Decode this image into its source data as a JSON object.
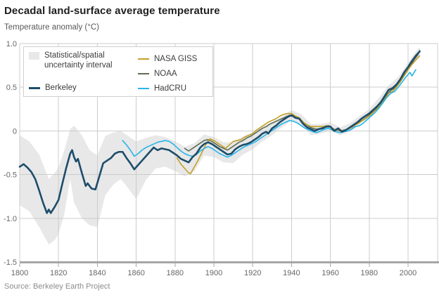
{
  "header": {
    "title": "Decadal land-surface average temperature",
    "subtitle": "Temperature anomaly (°C)"
  },
  "source": {
    "text": "Source: Berkeley Earth Project"
  },
  "legend": {
    "uncertainty": {
      "label": "Statistical/spatial uncertainty interval",
      "swatch_color": "#e8e8e8"
    },
    "series": [
      {
        "id": "berkeley",
        "label": "Berkeley",
        "color": "#1d4d6b"
      },
      {
        "id": "nasa",
        "label": "NASA GISS",
        "color": "#c2a029"
      },
      {
        "id": "noaa",
        "label": "NOAA",
        "color": "#5e6d54"
      },
      {
        "id": "hadcru",
        "label": "HadCRU",
        "color": "#25b5e9"
      }
    ]
  },
  "chart_data": {
    "type": "line",
    "title": "Decadal land-surface average temperature",
    "xlabel": "",
    "ylabel": "Temperature anomaly (°C)",
    "xlim": [
      1800,
      2015
    ],
    "ylim": [
      -1.5,
      1.0
    ],
    "xticks": [
      1800,
      1820,
      1840,
      1860,
      1880,
      1900,
      1920,
      1940,
      1960,
      1980,
      2000
    ],
    "yticks": [
      1.0,
      0.5,
      0,
      -0.5,
      -1.0,
      -1.5
    ],
    "ytick_labels": [
      "1.0",
      "0.5",
      "0",
      "-0.5",
      "-1.0",
      "-1.5"
    ],
    "grid": true,
    "legend_position": "top-left",
    "colors": {
      "grid": "#cccccc",
      "axis": "#a6a6a6",
      "tick_label": "#666666",
      "band": "#e8e8e8"
    },
    "band": {
      "name": "Statistical/spatial uncertainty interval",
      "x": [
        1800,
        1805,
        1810,
        1815,
        1818,
        1820,
        1823,
        1826,
        1828,
        1832,
        1836,
        1840,
        1844,
        1848,
        1852,
        1856,
        1860,
        1865,
        1870,
        1875,
        1880,
        1885,
        1890,
        1895,
        1900,
        1905,
        1910,
        1915,
        1920,
        1925,
        1930,
        1935,
        1940,
        1945,
        1950,
        1955,
        1960,
        1965,
        1970,
        1975,
        1980,
        1985,
        1990,
        1995,
        2000,
        2003,
        2006
      ],
      "upper": [
        -0.05,
        -0.12,
        -0.27,
        -0.55,
        -0.48,
        -0.42,
        -0.22,
        0.02,
        0.06,
        -0.05,
        -0.22,
        -0.28,
        -0.06,
        -0.02,
        0.0,
        -0.06,
        -0.12,
        -0.08,
        -0.05,
        -0.07,
        -0.12,
        -0.18,
        -0.14,
        -0.04,
        -0.07,
        -0.13,
        -0.13,
        -0.06,
        -0.02,
        0.05,
        0.1,
        0.16,
        0.24,
        0.19,
        0.08,
        0.08,
        0.1,
        0.04,
        0.09,
        0.17,
        0.25,
        0.38,
        0.52,
        0.62,
        0.78,
        0.88,
        0.96
      ],
      "lower": [
        -0.85,
        -0.92,
        -1.1,
        -1.3,
        -1.25,
        -1.18,
        -0.95,
        -0.55,
        -0.82,
        -1.0,
        -1.08,
        -1.1,
        -0.74,
        -0.62,
        -0.55,
        -0.66,
        -0.78,
        -0.56,
        -0.43,
        -0.41,
        -0.46,
        -0.52,
        -0.46,
        -0.28,
        -0.3,
        -0.36,
        -0.37,
        -0.27,
        -0.21,
        -0.12,
        -0.05,
        0.04,
        0.12,
        0.07,
        -0.05,
        -0.03,
        0.0,
        -0.05,
        -0.01,
        0.08,
        0.15,
        0.27,
        0.42,
        0.52,
        0.68,
        0.79,
        0.86
      ]
    },
    "series": [
      {
        "name": "NOAA",
        "color": "#5e6d54",
        "width": 1.6,
        "x": [
          1885,
          1887,
          1889,
          1891,
          1893,
          1895,
          1897,
          1899,
          1901,
          1903,
          1905,
          1907,
          1909,
          1911,
          1913,
          1915,
          1917,
          1919,
          1921,
          1923,
          1925,
          1927,
          1929,
          1931,
          1933,
          1935,
          1937,
          1939,
          1941,
          1943,
          1945,
          1947,
          1949,
          1951,
          1953,
          1955,
          1957,
          1959,
          1961,
          1963,
          1965,
          1967,
          1969,
          1971,
          1973,
          1975,
          1977,
          1979,
          1981,
          1983,
          1985,
          1987,
          1989,
          1991,
          1993,
          1995,
          1997,
          1999,
          2001,
          2003,
          2005,
          2006
        ],
        "y": [
          -0.2,
          -0.23,
          -0.2,
          -0.17,
          -0.14,
          -0.11,
          -0.1,
          -0.12,
          -0.15,
          -0.18,
          -0.2,
          -0.22,
          -0.19,
          -0.16,
          -0.13,
          -0.11,
          -0.08,
          -0.06,
          -0.03,
          0.0,
          0.03,
          0.05,
          0.08,
          0.1,
          0.12,
          0.14,
          0.16,
          0.18,
          0.17,
          0.15,
          0.12,
          0.08,
          0.05,
          0.03,
          0.02,
          0.03,
          0.05,
          0.06,
          0.03,
          0.01,
          0.0,
          0.01,
          0.02,
          0.04,
          0.07,
          0.1,
          0.13,
          0.16,
          0.2,
          0.24,
          0.28,
          0.34,
          0.41,
          0.46,
          0.49,
          0.54,
          0.61,
          0.67,
          0.74,
          0.81,
          0.87,
          0.92
        ]
      },
      {
        "name": "NASA GISS",
        "color": "#c2a029",
        "width": 1.6,
        "x": [
          1881,
          1883,
          1885,
          1887,
          1888,
          1890,
          1892,
          1894,
          1896,
          1898,
          1900,
          1902,
          1904,
          1906,
          1908,
          1910,
          1912,
          1914,
          1916,
          1918,
          1920,
          1922,
          1924,
          1926,
          1928,
          1930,
          1932,
          1934,
          1936,
          1938,
          1940,
          1942,
          1944,
          1946,
          1948,
          1950,
          1952,
          1954,
          1956,
          1958,
          1960,
          1962,
          1964,
          1966,
          1968,
          1970,
          1972,
          1974,
          1976,
          1978,
          1980,
          1982,
          1984,
          1986,
          1988,
          1990,
          1992,
          1994,
          1996,
          1998,
          2000,
          2002,
          2004,
          2006
        ],
        "y": [
          -0.31,
          -0.38,
          -0.43,
          -0.48,
          -0.49,
          -0.41,
          -0.33,
          -0.24,
          -0.15,
          -0.09,
          -0.11,
          -0.14,
          -0.17,
          -0.2,
          -0.16,
          -0.12,
          -0.11,
          -0.1,
          -0.07,
          -0.05,
          -0.03,
          0.01,
          0.04,
          0.07,
          0.1,
          0.12,
          0.14,
          0.17,
          0.19,
          0.2,
          0.2,
          0.17,
          0.15,
          0.1,
          0.07,
          0.05,
          0.05,
          0.05,
          0.05,
          0.06,
          0.04,
          0.02,
          0.01,
          0.0,
          0.01,
          0.03,
          0.06,
          0.08,
          0.11,
          0.14,
          0.17,
          0.21,
          0.25,
          0.3,
          0.36,
          0.43,
          0.45,
          0.5,
          0.56,
          0.63,
          0.7,
          0.76,
          0.81,
          0.86
        ]
      },
      {
        "name": "HadCRU",
        "color": "#25b5e9",
        "width": 1.6,
        "x": [
          1853,
          1855,
          1857,
          1859,
          1861,
          1863,
          1865,
          1867,
          1869,
          1871,
          1873,
          1875,
          1877,
          1879,
          1881,
          1883,
          1885,
          1887,
          1889,
          1891,
          1893,
          1895,
          1897,
          1899,
          1901,
          1903,
          1905,
          1907,
          1909,
          1911,
          1913,
          1915,
          1917,
          1919,
          1921,
          1923,
          1925,
          1927,
          1929,
          1931,
          1933,
          1935,
          1937,
          1939,
          1941,
          1943,
          1945,
          1947,
          1949,
          1951,
          1953,
          1955,
          1957,
          1959,
          1961,
          1963,
          1965,
          1967,
          1969,
          1971,
          1973,
          1975,
          1977,
          1979,
          1981,
          1983,
          1985,
          1987,
          1989,
          1991,
          1993,
          1995,
          1997,
          1999,
          2001,
          2002,
          2004
        ],
        "y": [
          -0.11,
          -0.16,
          -0.22,
          -0.29,
          -0.26,
          -0.22,
          -0.19,
          -0.17,
          -0.15,
          -0.13,
          -0.12,
          -0.11,
          -0.12,
          -0.15,
          -0.19,
          -0.23,
          -0.26,
          -0.28,
          -0.29,
          -0.27,
          -0.23,
          -0.2,
          -0.18,
          -0.2,
          -0.23,
          -0.26,
          -0.28,
          -0.3,
          -0.28,
          -0.25,
          -0.22,
          -0.19,
          -0.17,
          -0.15,
          -0.13,
          -0.1,
          -0.07,
          -0.04,
          -0.01,
          0.02,
          0.05,
          0.08,
          0.1,
          0.12,
          0.11,
          0.09,
          0.06,
          0.03,
          0.01,
          -0.01,
          -0.02,
          0.0,
          0.02,
          0.03,
          0.01,
          -0.01,
          -0.02,
          -0.01,
          0.0,
          0.02,
          0.05,
          0.06,
          0.09,
          0.13,
          0.17,
          0.21,
          0.26,
          0.32,
          0.38,
          0.43,
          0.45,
          0.5,
          0.56,
          0.62,
          0.67,
          0.63,
          0.7
        ]
      },
      {
        "name": "Berkeley",
        "color": "#1d4d6b",
        "width": 2.6,
        "x": [
          1800,
          1802,
          1804,
          1806,
          1808,
          1810,
          1812,
          1814,
          1815,
          1816,
          1818,
          1820,
          1822,
          1824,
          1826,
          1827,
          1828,
          1829,
          1830,
          1832,
          1834,
          1835,
          1837,
          1839,
          1841,
          1843,
          1845,
          1847,
          1849,
          1851,
          1853,
          1855,
          1857,
          1859,
          1861,
          1863,
          1865,
          1867,
          1869,
          1871,
          1873,
          1875,
          1877,
          1879,
          1881,
          1883,
          1885,
          1887,
          1889,
          1891,
          1893,
          1895,
          1897,
          1899,
          1901,
          1903,
          1905,
          1907,
          1909,
          1911,
          1913,
          1915,
          1917,
          1919,
          1921,
          1923,
          1925,
          1927,
          1928,
          1930,
          1932,
          1934,
          1936,
          1938,
          1940,
          1942,
          1944,
          1946,
          1948,
          1950,
          1952,
          1954,
          1956,
          1958,
          1960,
          1962,
          1964,
          1966,
          1968,
          1970,
          1972,
          1974,
          1976,
          1978,
          1980,
          1982,
          1984,
          1986,
          1988,
          1990,
          1992,
          1994,
          1996,
          1998,
          2000,
          2002,
          2004,
          2006
        ],
        "y": [
          -0.41,
          -0.38,
          -0.42,
          -0.47,
          -0.55,
          -0.68,
          -0.82,
          -0.94,
          -0.9,
          -0.94,
          -0.87,
          -0.79,
          -0.6,
          -0.42,
          -0.26,
          -0.22,
          -0.3,
          -0.35,
          -0.32,
          -0.48,
          -0.63,
          -0.6,
          -0.66,
          -0.67,
          -0.52,
          -0.37,
          -0.34,
          -0.31,
          -0.26,
          -0.24,
          -0.24,
          -0.31,
          -0.37,
          -0.44,
          -0.39,
          -0.34,
          -0.29,
          -0.24,
          -0.19,
          -0.22,
          -0.2,
          -0.21,
          -0.22,
          -0.25,
          -0.28,
          -0.32,
          -0.34,
          -0.36,
          -0.3,
          -0.26,
          -0.19,
          -0.15,
          -0.13,
          -0.15,
          -0.18,
          -0.21,
          -0.24,
          -0.27,
          -0.26,
          -0.21,
          -0.18,
          -0.16,
          -0.15,
          -0.13,
          -0.1,
          -0.07,
          -0.03,
          -0.01,
          -0.03,
          0.03,
          0.06,
          0.1,
          0.13,
          0.16,
          0.18,
          0.15,
          0.14,
          0.08,
          0.04,
          0.02,
          0.0,
          0.02,
          0.03,
          0.05,
          0.05,
          0.0,
          0.03,
          -0.01,
          0.01,
          0.04,
          0.07,
          0.1,
          0.14,
          0.17,
          0.2,
          0.24,
          0.28,
          0.33,
          0.4,
          0.47,
          0.49,
          0.53,
          0.59,
          0.67,
          0.73,
          0.8,
          0.86,
          0.91
        ]
      }
    ]
  }
}
